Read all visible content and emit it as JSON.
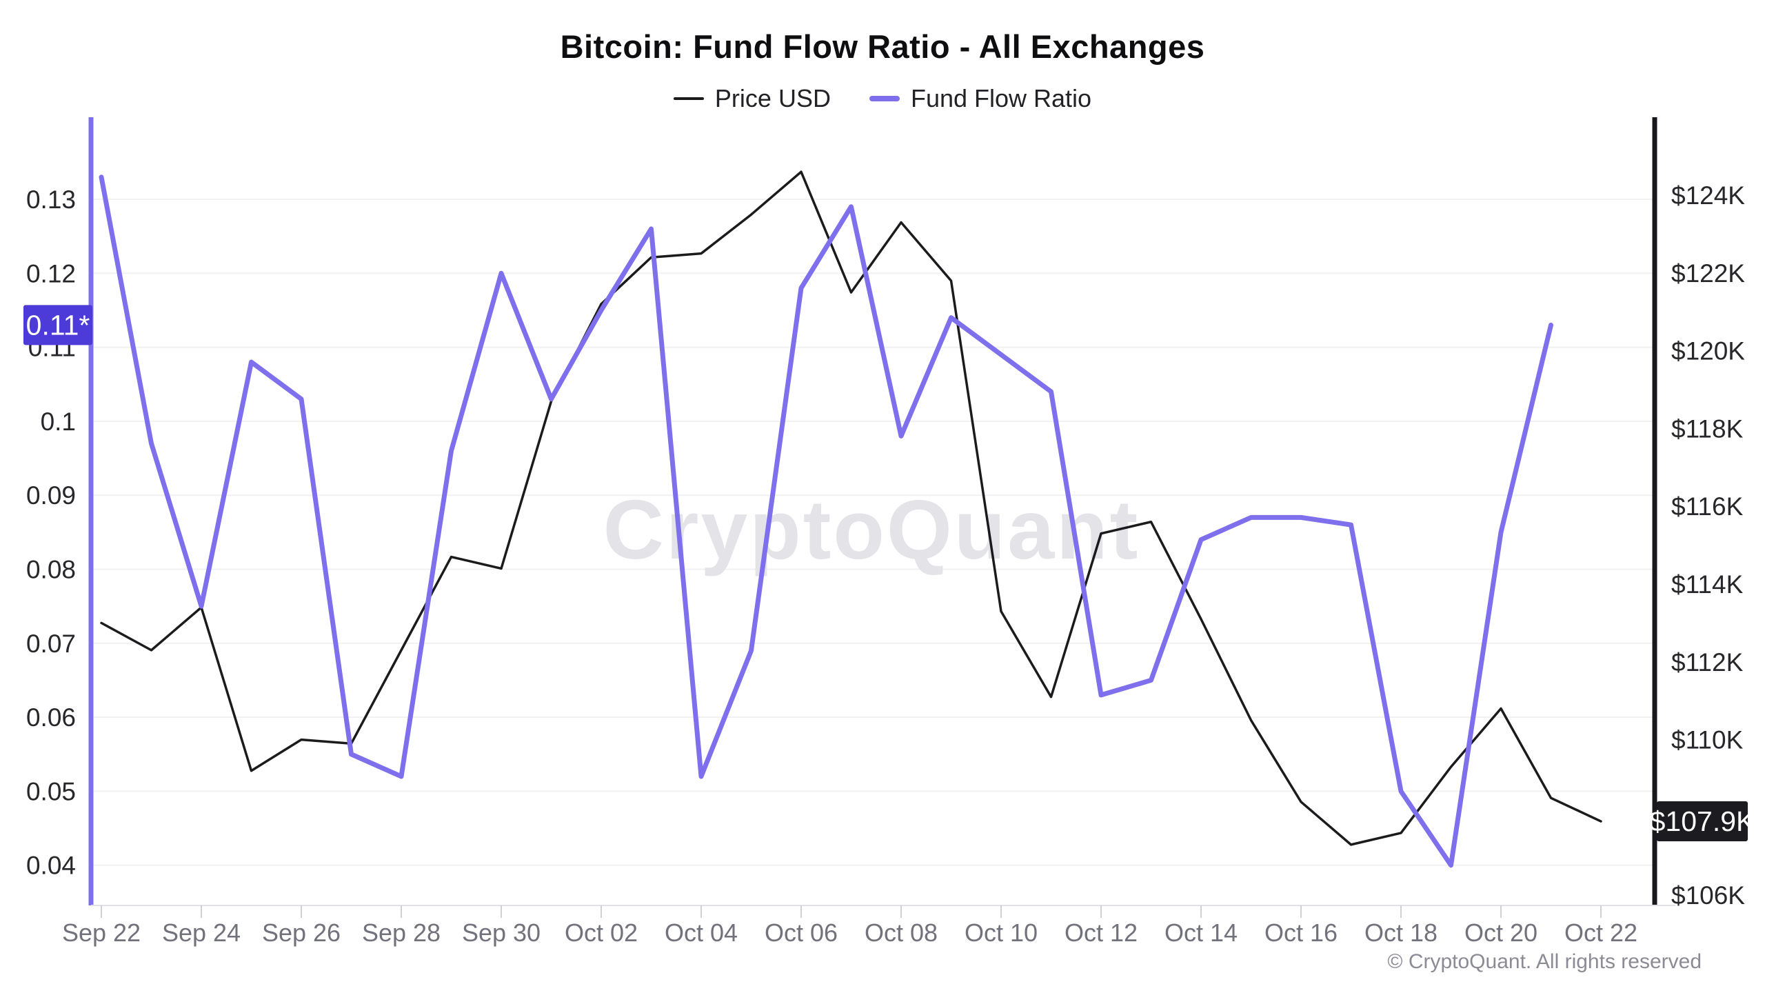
{
  "header": {
    "title": "Bitcoin: Fund Flow Ratio - All Exchanges"
  },
  "legend": [
    {
      "label": "Price USD"
    },
    {
      "label": "Fund Flow Ratio"
    }
  ],
  "watermark": "CryptoQuant",
  "footer": {
    "copyright": "© CryptoQuant. All rights reserved"
  },
  "badges": {
    "ratio_latest": {
      "label": "0.11*",
      "value": 0.113,
      "bg": "#4c3bd8",
      "text_color": "#ffffff"
    },
    "price_latest": {
      "label": "$107.9K",
      "value": 107.9,
      "bg": "#1b1b20",
      "text_color": "#ffffff"
    }
  },
  "chart_data": {
    "type": "line",
    "title": "Bitcoin: Fund Flow Ratio - All Exchanges",
    "x": [
      "Sep 22",
      "Sep 23",
      "Sep 24",
      "Sep 25",
      "Sep 26",
      "Sep 27",
      "Sep 28",
      "Sep 29",
      "Sep 30",
      "Oct 01",
      "Oct 02",
      "Oct 03",
      "Oct 04",
      "Oct 05",
      "Oct 06",
      "Oct 07",
      "Oct 08",
      "Oct 09",
      "Oct 10",
      "Oct 11",
      "Oct 12",
      "Oct 13",
      "Oct 14",
      "Oct 15",
      "Oct 16",
      "Oct 17",
      "Oct 18",
      "Oct 19",
      "Oct 20",
      "Oct 21",
      "Oct 22"
    ],
    "x_tick_labels": [
      "Sep 22",
      "Sep 24",
      "Sep 26",
      "Sep 28",
      "Sep 30",
      "Oct 02",
      "Oct 04",
      "Oct 06",
      "Oct 08",
      "Oct 10",
      "Oct 12",
      "Oct 14",
      "Oct 16",
      "Oct 18",
      "Oct 20",
      "Oct 22"
    ],
    "series": [
      {
        "name": "Price USD",
        "axis": "right",
        "unit": "USD thousands",
        "color": "#1b1b1d",
        "values": [
          113.0,
          112.3,
          113.4,
          109.2,
          110.0,
          109.9,
          112.3,
          114.7,
          114.4,
          118.7,
          121.2,
          122.4,
          122.5,
          123.5,
          124.6,
          121.5,
          123.3,
          121.8,
          113.3,
          111.1,
          115.3,
          115.6,
          113.1,
          110.5,
          108.4,
          107.3,
          107.6,
          109.3,
          110.8,
          108.5,
          107.9
        ]
      },
      {
        "name": "Fund Flow Ratio",
        "axis": "left",
        "unit": "ratio",
        "color": "#7e70ec",
        "values": [
          0.133,
          0.097,
          0.075,
          0.108,
          0.103,
          0.055,
          0.052,
          0.096,
          0.12,
          0.103,
          0.115,
          0.126,
          0.052,
          0.069,
          0.118,
          0.129,
          0.098,
          0.114,
          0.109,
          0.104,
          0.063,
          0.065,
          0.084,
          0.087,
          0.087,
          0.086,
          0.05,
          0.04,
          0.085,
          0.113,
          null
        ]
      }
    ],
    "left_axis": {
      "series": "Fund Flow Ratio",
      "ticks": [
        "0.13",
        "0.12",
        "0.11",
        "0.1",
        "0.09",
        "0.08",
        "0.07",
        "0.06",
        "0.05",
        "0.04"
      ],
      "range": [
        0.0346,
        0.1425
      ]
    },
    "right_axis": {
      "series": "Price USD",
      "ticks": [
        "$124K",
        "$122K",
        "$120K",
        "$118K",
        "$116K",
        "$114K",
        "$112K",
        "$110K",
        "$108K",
        "$106K"
      ],
      "range": [
        105.7,
        126.3
      ]
    },
    "grid": true,
    "legend_position": "top"
  }
}
